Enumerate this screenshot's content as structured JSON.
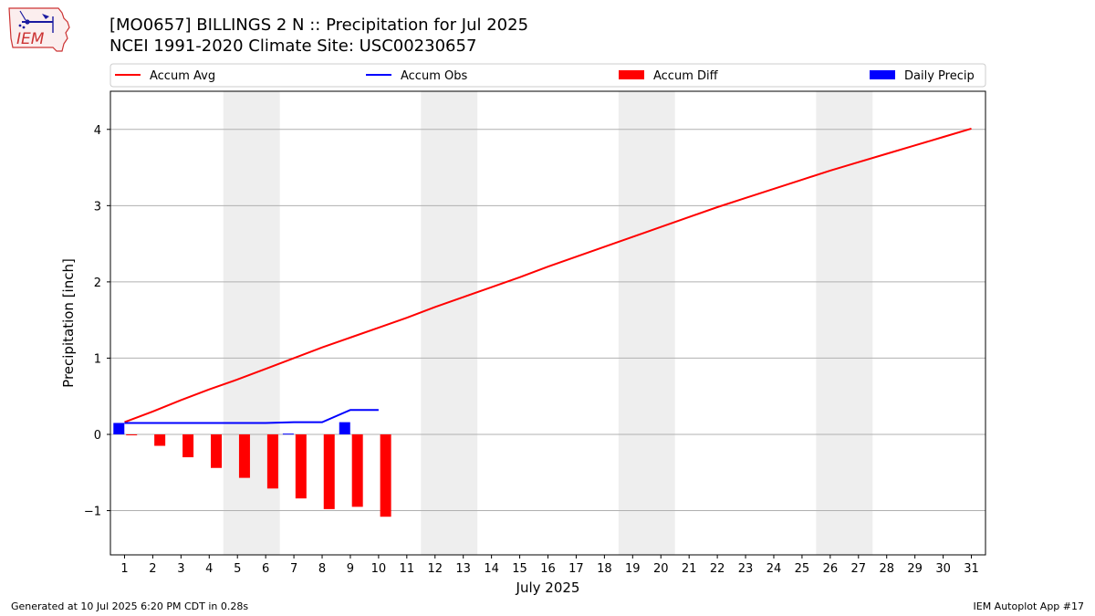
{
  "header": {
    "title_line1": "[MO0657] BILLINGS 2 N :: Precipitation for Jul 2025",
    "title_line2": "NCEI 1991-2020 Climate Site: USC00230657",
    "logo_text": "IEM"
  },
  "footer": {
    "generated": "Generated at 10 Jul 2025 6:20 PM CDT in 0.28s",
    "app": "IEM Autoplot App #17"
  },
  "colors": {
    "accum_avg": "#ff0000",
    "accum_obs": "#0000ff",
    "accum_diff": "#ff0000",
    "daily_precip": "#0000ff",
    "weekend_shade": "#eeeeee",
    "grid": "#b0b0b0",
    "logo": "#cc3333"
  },
  "chart_data": {
    "type": "line",
    "title": "[MO0657] BILLINGS 2 N :: Precipitation for Jul 2025",
    "subtitle": "NCEI 1991-2020 Climate Site: USC00230657",
    "xlabel": "July 2025",
    "ylabel": "Precipitation [inch]",
    "xlim": [
      0.5,
      31.5
    ],
    "ylim": [
      -1.58,
      4.5
    ],
    "grid": "horizontal",
    "legend_position": "top",
    "x_ticks": [
      1,
      2,
      3,
      4,
      5,
      6,
      7,
      8,
      9,
      10,
      11,
      12,
      13,
      14,
      15,
      16,
      17,
      18,
      19,
      20,
      21,
      22,
      23,
      24,
      25,
      26,
      27,
      28,
      29,
      30,
      31
    ],
    "y_ticks": [
      -1,
      0,
      1,
      2,
      3,
      4
    ],
    "y_tick_labels": [
      "−1",
      "0",
      "1",
      "2",
      "3",
      "4"
    ],
    "weekend_bands": [
      [
        4.5,
        6.5
      ],
      [
        11.5,
        13.5
      ],
      [
        18.5,
        20.5
      ],
      [
        25.5,
        27.5
      ]
    ],
    "legend": [
      "Accum Avg",
      "Accum Obs",
      "Accum Diff",
      "Daily Precip"
    ],
    "series": [
      {
        "name": "Accum Avg",
        "kind": "line",
        "x": [
          1,
          2,
          3,
          4,
          5,
          6,
          7,
          8,
          9,
          10,
          11,
          12,
          13,
          14,
          15,
          16,
          17,
          18,
          19,
          20,
          21,
          22,
          23,
          24,
          25,
          26,
          27,
          28,
          29,
          30,
          31
        ],
        "values": [
          0.16,
          0.3,
          0.45,
          0.59,
          0.72,
          0.86,
          1.0,
          1.14,
          1.27,
          1.4,
          1.53,
          1.67,
          1.8,
          1.93,
          2.06,
          2.2,
          2.33,
          2.46,
          2.59,
          2.72,
          2.85,
          2.98,
          3.1,
          3.22,
          3.34,
          3.46,
          3.57,
          3.68,
          3.79,
          3.9,
          4.01
        ]
      },
      {
        "name": "Accum Obs",
        "kind": "line",
        "x": [
          1,
          2,
          3,
          4,
          5,
          6,
          7,
          8,
          9,
          10
        ],
        "values": [
          0.15,
          0.15,
          0.15,
          0.15,
          0.15,
          0.15,
          0.16,
          0.16,
          0.32,
          0.32
        ]
      },
      {
        "name": "Accum Diff",
        "kind": "bar",
        "x": [
          1,
          2,
          3,
          4,
          5,
          6,
          7,
          8,
          9,
          10
        ],
        "values": [
          -0.01,
          -0.15,
          -0.3,
          -0.44,
          -0.57,
          -0.71,
          -0.84,
          -0.98,
          -0.95,
          -1.08
        ]
      },
      {
        "name": "Daily Precip",
        "kind": "bar",
        "x": [
          1,
          2,
          3,
          4,
          5,
          6,
          7,
          8,
          9,
          10
        ],
        "values": [
          0.15,
          0,
          0,
          0,
          0,
          0,
          0.01,
          0,
          0.16,
          0
        ]
      }
    ]
  }
}
